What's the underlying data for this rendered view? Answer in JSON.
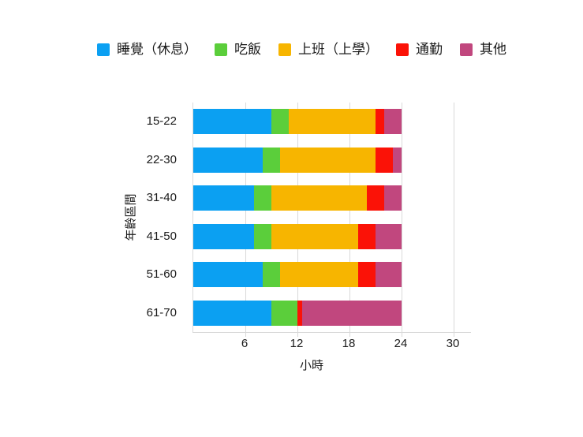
{
  "chart_data": {
    "type": "bar",
    "orientation": "horizontal",
    "stacked": true,
    "title": "",
    "xlabel": "小時",
    "ylabel": "年齡區間",
    "categories": [
      "15-22",
      "22-30",
      "31-40",
      "41-50",
      "51-60",
      "61-70"
    ],
    "series": [
      {
        "name": "睡覺（休息）",
        "color": "#0ba0f2",
        "values": [
          9,
          8,
          7,
          7,
          8,
          9
        ]
      },
      {
        "name": "吃飯",
        "color": "#5bce3b",
        "values": [
          2,
          2,
          2,
          2,
          2,
          3
        ]
      },
      {
        "name": "上班（上學）",
        "color": "#f7b500",
        "values": [
          10,
          11,
          11,
          10,
          9,
          0
        ]
      },
      {
        "name": "通勤",
        "color": "#fb1207",
        "values": [
          1,
          2,
          2,
          2,
          2,
          0.5
        ]
      },
      {
        "name": "其他",
        "color": "#c1477e",
        "values": [
          2,
          1,
          2,
          3,
          3,
          11.5
        ]
      }
    ],
    "x_ticks": [
      6,
      12,
      18,
      24,
      30
    ],
    "xlim": [
      0,
      32
    ],
    "grid": true,
    "legend_position": "top",
    "gridline_color": "#d9d9d9",
    "background_color": "#ffffff"
  }
}
